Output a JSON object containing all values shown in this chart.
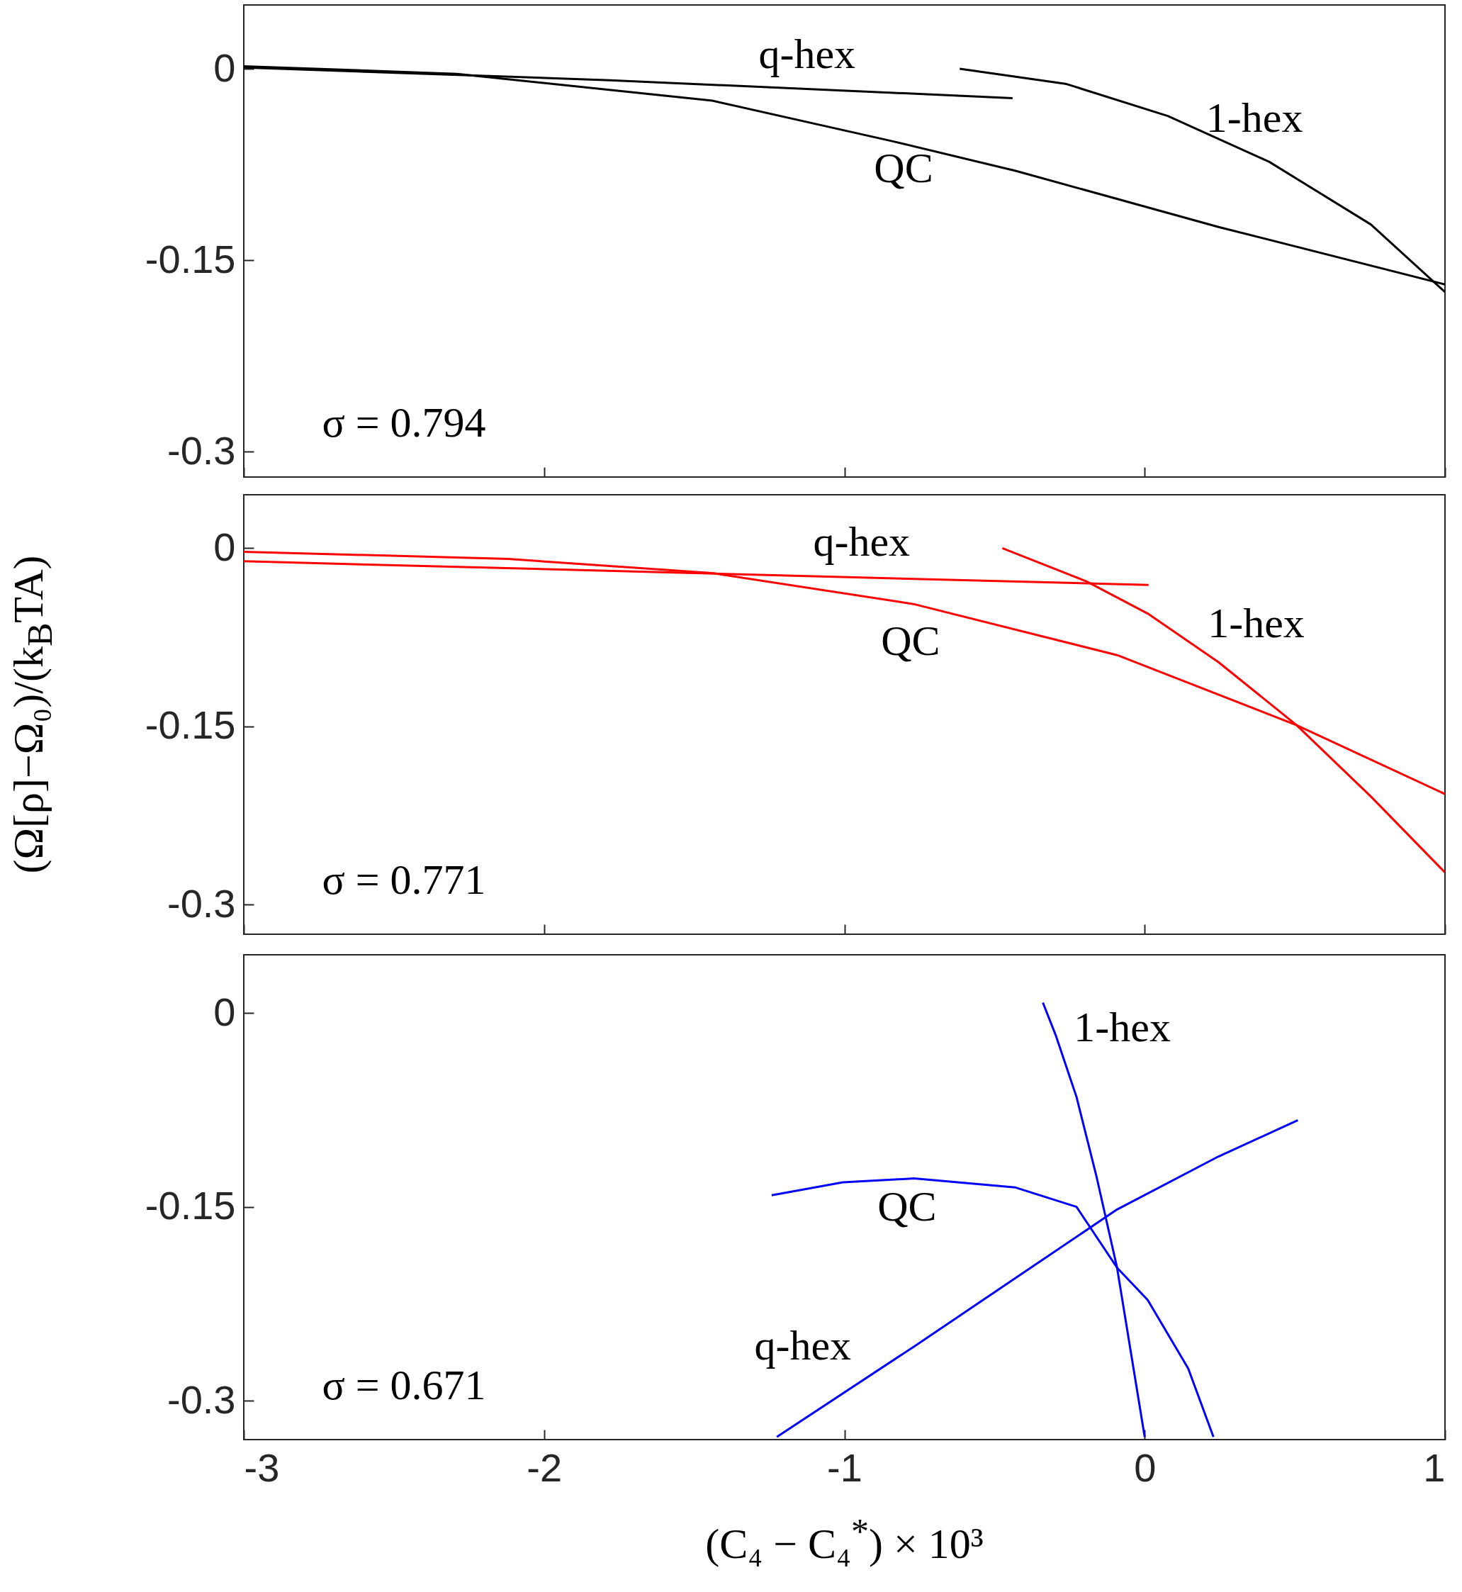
{
  "chart_data": [
    {
      "type": "line",
      "xlim": [
        -3,
        1
      ],
      "xticks": [
        -3,
        -2,
        -1,
        0,
        1
      ],
      "ylim": [
        -0.32,
        0.05
      ],
      "yticks": [
        -0.3,
        -0.15,
        0
      ],
      "tick_labels": "y",
      "annotations": [
        "σ = 0.794"
      ],
      "series": [
        {
          "name": "QC",
          "color": "#000000",
          "x": [
            -3,
            -2.29,
            -1.44,
            -0.836,
            -0.43,
            0.246,
            1
          ],
          "values": [
            0.002,
            -0.004,
            -0.025,
            -0.057,
            -0.08,
            -0.124,
            -0.169
          ]
        },
        {
          "name": "q-hex",
          "color": "#000000",
          "x": [
            -3,
            -1.78,
            -0.44
          ],
          "values": [
            0.001,
            -0.009,
            -0.023
          ]
        },
        {
          "name": "1-hex",
          "color": "#000000",
          "x": [
            -0.616,
            -0.26,
            0.077,
            0.415,
            0.753,
            1
          ],
          "values": [
            0,
            -0.012,
            -0.037,
            -0.073,
            -0.122,
            -0.175
          ]
        }
      ]
    },
    {
      "type": "line",
      "xlim": [
        -3,
        1
      ],
      "xticks": [
        -3,
        -2,
        -1,
        0,
        1
      ],
      "ylim": [
        -0.325,
        0.045
      ],
      "yticks": [
        -0.3,
        -0.15,
        0
      ],
      "tick_labels": "y",
      "ylabel": "(Ω[ρ]−Ω₀)/(k$_{B}$TA)",
      "annotations": [
        "σ = 0.771"
      ],
      "series": [
        {
          "name": "QC",
          "color": "#ff0000",
          "x": [
            -3,
            -2.12,
            -1.44,
            -0.77,
            -0.092,
            0.506,
            1
          ],
          "values": [
            -0.003,
            -0.009,
            -0.021,
            -0.047,
            -0.09,
            -0.149,
            -0.207
          ]
        },
        {
          "name": "q-hex",
          "color": "#ff0000",
          "x": [
            -3,
            0.013
          ],
          "values": [
            -0.011,
            -0.031
          ]
        },
        {
          "name": "1-hex",
          "color": "#ff0000",
          "x": [
            -0.474,
            -0.193,
            0.01,
            0.246,
            0.506,
            0.753,
            1
          ],
          "values": [
            0,
            -0.028,
            -0.055,
            -0.096,
            -0.149,
            -0.209,
            -0.273
          ]
        }
      ]
    },
    {
      "type": "line",
      "xlim": [
        -3,
        1
      ],
      "xticks": [
        -3,
        -2,
        -1,
        0,
        1
      ],
      "ylim": [
        -0.33,
        0.045
      ],
      "yticks": [
        -0.3,
        -0.15,
        0
      ],
      "xlabel": "(C₄ − C₄$^{*}$) × 10³",
      "annotations": [
        "σ = 0.671"
      ],
      "series": [
        {
          "name": "QC",
          "color": "#0000ff",
          "x": [
            -1.242,
            -1.005,
            -0.768,
            -0.43,
            -0.227,
            -0.092,
            0.01,
            0.145,
            0.229
          ],
          "values": [
            -0.141,
            -0.131,
            -0.128,
            -0.135,
            -0.15,
            -0.197,
            -0.222,
            -0.275,
            -0.328
          ]
        },
        {
          "name": "q-hex",
          "color": "#0000ff",
          "x": [
            -1.225,
            -0.768,
            -0.43,
            -0.092,
            0.246,
            0.51
          ],
          "values": [
            -0.328,
            -0.258,
            -0.205,
            -0.152,
            -0.111,
            -0.083
          ]
        },
        {
          "name": "1-hex",
          "color": "#0000ff",
          "x": [
            -0.339,
            -0.295,
            -0.227,
            -0.16,
            -0.092,
            0
          ],
          "values": [
            0.008,
            -0.018,
            -0.065,
            -0.127,
            -0.197,
            -0.328
          ]
        }
      ]
    }
  ]
}
